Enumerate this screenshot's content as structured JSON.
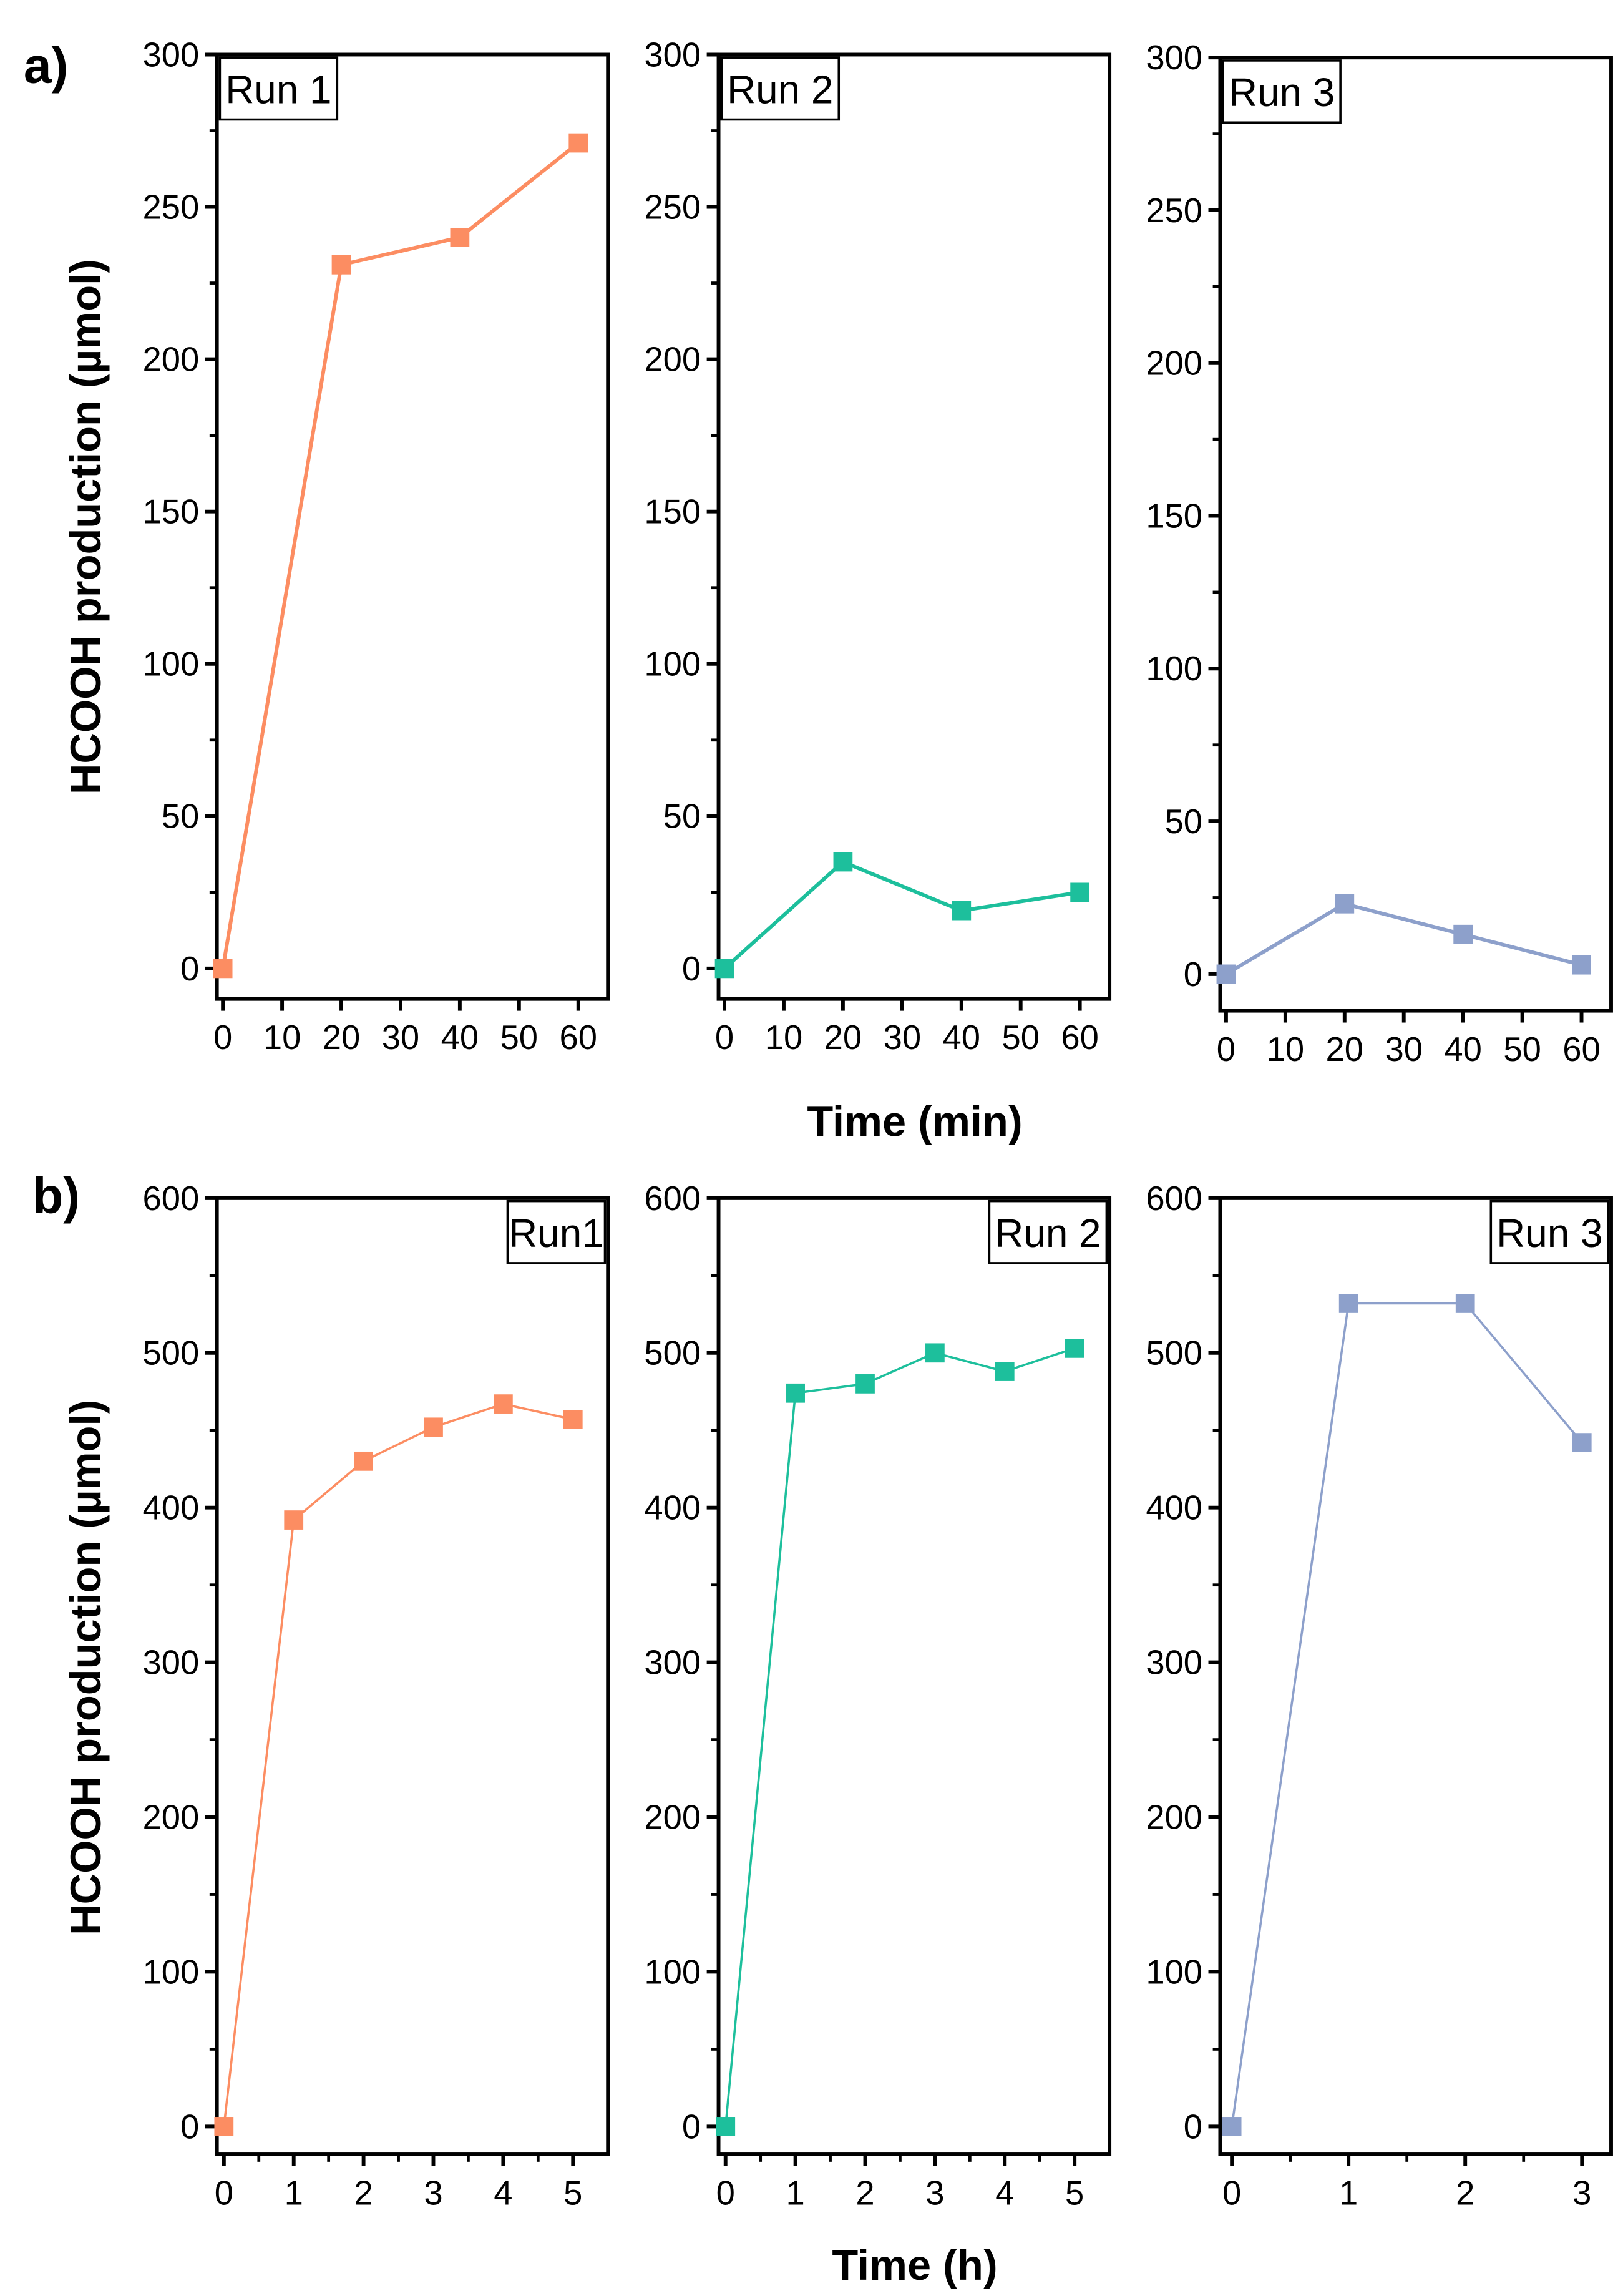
{
  "chart_data": [
    {
      "type": "line",
      "panel": "a)",
      "title": "Run 1",
      "xlabel": "Time (min)",
      "ylabel": "HCOOH production (µmol)",
      "color": "#FC8D62",
      "xlim": [
        -1,
        65
      ],
      "ylim": [
        -10,
        300
      ],
      "xticks": [
        0,
        10,
        20,
        30,
        40,
        50,
        60
      ],
      "yticks": [
        0,
        50,
        100,
        150,
        200,
        250,
        300
      ],
      "x": [
        0,
        20,
        40,
        60
      ],
      "y": [
        0,
        231,
        240,
        271
      ],
      "label_pos": "top-left"
    },
    {
      "type": "line",
      "panel": "a)",
      "title": "Run 2",
      "xlabel": "Time (min)",
      "ylabel": "",
      "color": "#1DBF9C",
      "xlim": [
        -1,
        65
      ],
      "ylim": [
        -10,
        300
      ],
      "xticks": [
        0,
        10,
        20,
        30,
        40,
        50,
        60
      ],
      "yticks": [
        0,
        50,
        100,
        150,
        200,
        250,
        300
      ],
      "x": [
        0,
        20,
        40,
        60
      ],
      "y": [
        0,
        35,
        19,
        25
      ],
      "label_pos": "top-left"
    },
    {
      "type": "line",
      "panel": "a)",
      "title": "Run 3",
      "xlabel": "Time (min)",
      "ylabel": "",
      "color": "#8DA0CB",
      "xlim": [
        -1,
        65
      ],
      "ylim": [
        -12,
        300
      ],
      "xticks": [
        0,
        10,
        20,
        30,
        40,
        50,
        60
      ],
      "yticks": [
        0,
        50,
        100,
        150,
        200,
        250,
        300
      ],
      "x": [
        0,
        20,
        40,
        60
      ],
      "y": [
        0,
        23,
        13,
        3
      ],
      "label_pos": "top-left"
    },
    {
      "type": "line",
      "panel": "b)",
      "title": "Run1",
      "xlabel": "Time (h)",
      "ylabel": "HCOOH production (µmol)",
      "color": "#FC8D62",
      "xlim": [
        -0.1,
        5.5
      ],
      "ylim": [
        -18,
        600
      ],
      "xticks": [
        0,
        1,
        2,
        3,
        4,
        5
      ],
      "yticks": [
        0,
        100,
        200,
        300,
        400,
        500,
        600
      ],
      "x": [
        0,
        1,
        2,
        3,
        4,
        5
      ],
      "y": [
        0,
        392,
        430,
        452,
        467,
        457
      ],
      "label_pos": "top-right"
    },
    {
      "type": "line",
      "panel": "b)",
      "title": "Run 2",
      "xlabel": "Time (h)",
      "ylabel": "",
      "color": "#1DBF9C",
      "xlim": [
        -0.1,
        5.5
      ],
      "ylim": [
        -18,
        600
      ],
      "xticks": [
        0,
        1,
        2,
        3,
        4,
        5
      ],
      "yticks": [
        0,
        100,
        200,
        300,
        400,
        500,
        600
      ],
      "x": [
        0,
        1,
        2,
        3,
        4,
        5
      ],
      "y": [
        0,
        474,
        480,
        500,
        488,
        503
      ],
      "label_pos": "top-right"
    },
    {
      "type": "line",
      "panel": "b)",
      "title": "Run 3",
      "xlabel": "Time (h)",
      "ylabel": "",
      "color": "#8DA0CB",
      "xlim": [
        -0.1,
        3.25
      ],
      "ylim": [
        -18,
        600
      ],
      "xticks": [
        0,
        1,
        2,
        3
      ],
      "yticks": [
        0,
        100,
        200,
        300,
        400,
        500,
        600
      ],
      "x": [
        0,
        1,
        2,
        3
      ],
      "y": [
        0,
        532,
        532,
        442
      ],
      "label_pos": "top-right"
    }
  ],
  "labels": {
    "panel_a": "a)",
    "panel_b": "b)",
    "ylabel": "HCOOH production (µmol)",
    "xlabel_a": "Time (min)",
    "xlabel_b": "Time (h)"
  }
}
